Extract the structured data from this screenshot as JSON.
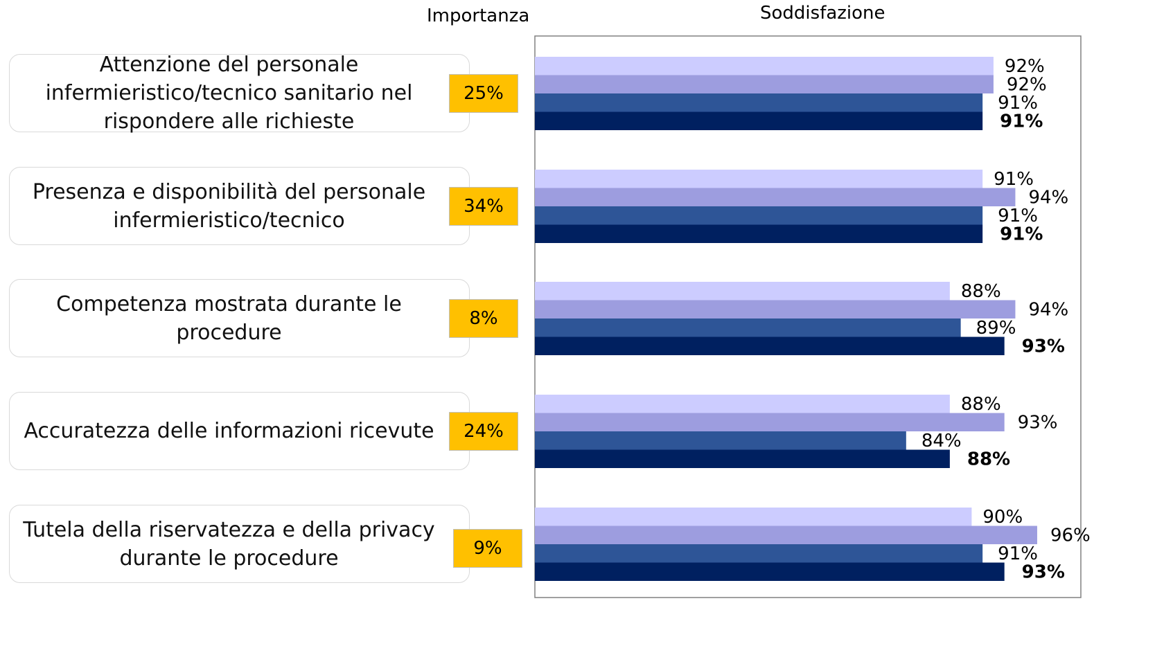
{
  "chart_data": {
    "type": "bar",
    "orientation": "horizontal",
    "importance_title": "Importanza",
    "title": "Soddisfazione",
    "categories": [
      "Attenzione del personale infermieristico/tecnico sanitario nel rispondere alle richieste",
      "Presenza e disponibilità del personale infermieristico/tecnico",
      "Competenza mostrata durante le procedure",
      "Accuratezza delle informazioni ricevute",
      "Tutela della riservatezza e della privacy durante le procedure"
    ],
    "importance": {
      "color": "#ffc000",
      "values": [
        25,
        34,
        8,
        24,
        9
      ],
      "value_labels": [
        "25%",
        "34%",
        "8%",
        "24%",
        "9%"
      ]
    },
    "series": [
      {
        "color": "#ccccff",
        "values": [
          92,
          91,
          88,
          88,
          90
        ],
        "value_labels": [
          "92%",
          "91%",
          "88%",
          "88%",
          "90%"
        ]
      },
      {
        "color": "#9d9ddf",
        "values": [
          92,
          94,
          94,
          93,
          96
        ],
        "value_labels": [
          "92%",
          "94%",
          "94%",
          "93%",
          "96%"
        ]
      },
      {
        "color": "#2e5597",
        "values": [
          91,
          91,
          89,
          84,
          91
        ],
        "value_labels": [
          "91%",
          "91%",
          "89%",
          "84%",
          "91%"
        ]
      },
      {
        "color": "#002060",
        "values": [
          91,
          91,
          93,
          88,
          93
        ],
        "value_labels": [
          "91%",
          "91%",
          "93%",
          "88%",
          "93%"
        ],
        "bold": true
      }
    ],
    "xlim": [
      50,
      100
    ]
  }
}
